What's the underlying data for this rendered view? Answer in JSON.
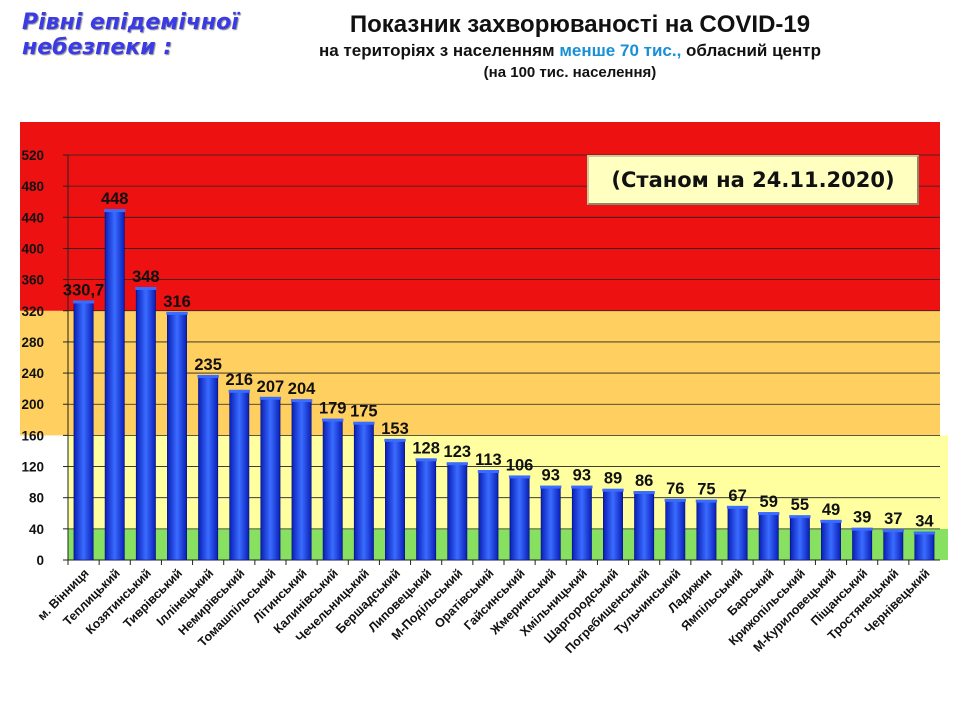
{
  "side_title": {
    "line1": "Рівні епідемічної",
    "line2": "небезпеки :"
  },
  "title": {
    "line1": "Показник захворюваності на COVID-19",
    "line2_a": "на територіях з населенням",
    "line2_b": "менше 70 тис.,",
    "line2_c": "обласний центр",
    "line3": "(на 100  тис. населення)"
  },
  "date_box": "(Станом на 24.11.2020)",
  "colors": {
    "red_zone": "#ee1111",
    "orange_zone": "#ffd060",
    "yellow_zone": "#ffffa0",
    "green_zone": "#88e060",
    "bar_dark": "#0a1fb8",
    "bar_light": "#3a6cff",
    "highlight_text": "#1890d8",
    "side_title": "#3a3ae6"
  },
  "chart_data": {
    "type": "bar",
    "title": "Показник захворюваності на COVID-19",
    "xlabel": "",
    "ylabel": "",
    "ylim": [
      0,
      520
    ],
    "yticks": [
      "0",
      "40",
      "80",
      "120",
      "160",
      "200",
      "240",
      "280",
      "320",
      "360",
      "400",
      "440",
      "480",
      "520"
    ],
    "grid": true,
    "legend": "none",
    "zones": [
      {
        "name": "green",
        "from": 0,
        "to": 40
      },
      {
        "name": "yellow",
        "from": 40,
        "to": 160
      },
      {
        "name": "orange",
        "from": 160,
        "to": 320
      },
      {
        "name": "red",
        "from": 320,
        "to": 520
      }
    ],
    "categories": [
      "м. Вінниця",
      "Теплицький",
      "Козятинський",
      "Тиврівський",
      "Іллінецький",
      "Немирівський",
      "Томашпільський",
      "Літинський",
      "Калинівський",
      "Чечельницький",
      "Бершадський",
      "Липовецький",
      "М-Подільський",
      "Оратівський",
      "Гайсинський",
      "Жмеринський",
      "Хмільницький",
      "Шаргородський",
      "Погребищенський",
      "Тульчинський",
      "Ладижин",
      "Ямпільський",
      "Барський",
      "Крижопільський",
      "М-Куриловецький",
      "Піщанський",
      "Тростянецький",
      "Чернівецький"
    ],
    "values": [
      330.7,
      448,
      348,
      316,
      235,
      216,
      207,
      204,
      179,
      175,
      153,
      128,
      123,
      113,
      106,
      93,
      93,
      89,
      86,
      76,
      75,
      67,
      59,
      55,
      49,
      39,
      37,
      34
    ],
    "labels": [
      "330,7",
      "448",
      "348",
      "316",
      "235",
      "216",
      "207",
      "204",
      "179",
      "175",
      "153",
      "128",
      "123",
      "113",
      "106",
      "93",
      "93",
      "89",
      "86",
      "76",
      "75",
      "67",
      "59",
      "55",
      "49",
      "39",
      "37",
      "34"
    ]
  }
}
